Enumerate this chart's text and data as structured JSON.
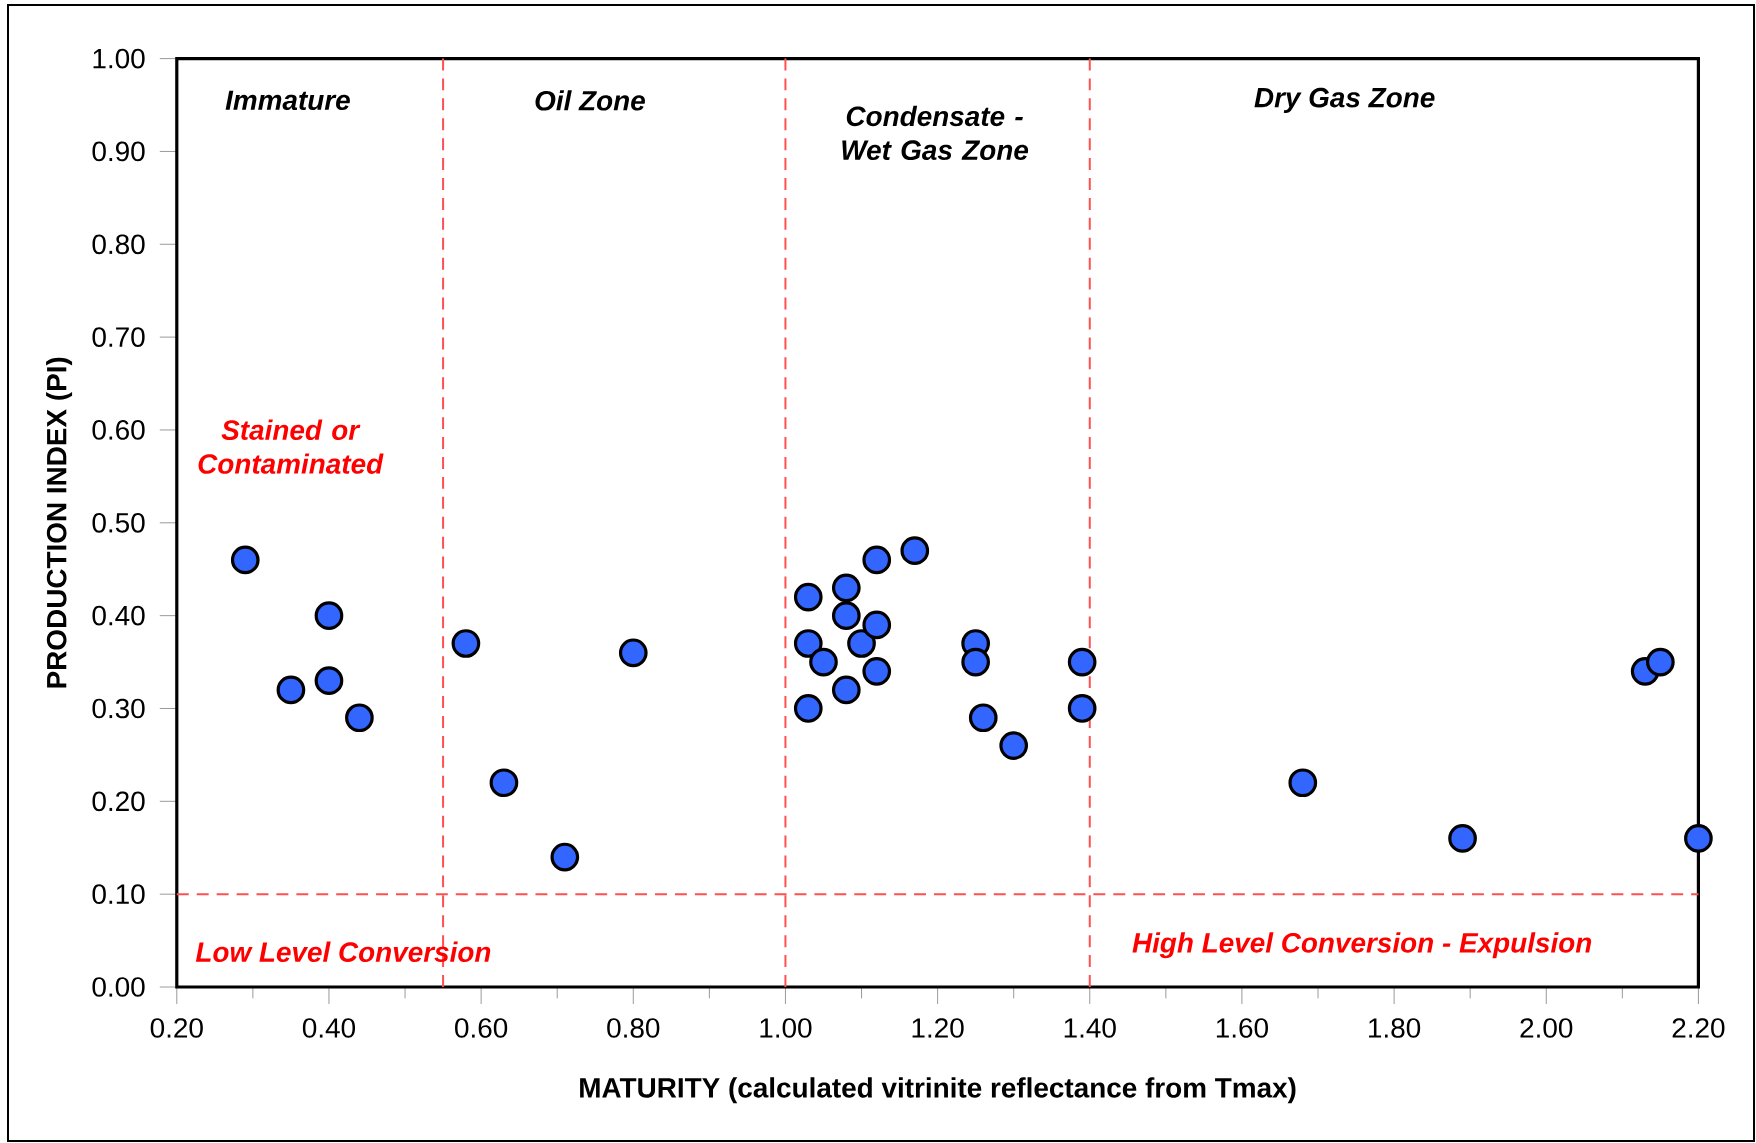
{
  "chart_data": {
    "type": "scatter",
    "xlabel": "MATURITY (calculated vitrinite reflectance from Tmax)",
    "ylabel": "PRODUCTION INDEX (PI)",
    "x": [
      0.29,
      0.35,
      0.4,
      0.4,
      0.44,
      0.58,
      0.63,
      0.71,
      0.8,
      1.03,
      1.03,
      1.03,
      1.05,
      1.08,
      1.08,
      1.08,
      1.1,
      1.12,
      1.12,
      1.12,
      1.17,
      1.25,
      1.25,
      1.26,
      1.3,
      1.39,
      1.39,
      1.68,
      1.89,
      2.13,
      2.15,
      2.2
    ],
    "values": [
      0.46,
      0.32,
      0.4,
      0.33,
      0.29,
      0.37,
      0.22,
      0.14,
      0.36,
      0.42,
      0.37,
      0.3,
      0.35,
      0.43,
      0.4,
      0.32,
      0.37,
      0.46,
      0.39,
      0.34,
      0.47,
      0.37,
      0.35,
      0.29,
      0.26,
      0.35,
      0.3,
      0.22,
      0.16,
      0.34,
      0.35,
      0.16
    ],
    "color": "#3366ff",
    "marker": "circle",
    "xlim": [
      0.2,
      2.2
    ],
    "ylim": [
      0,
      1
    ],
    "xticks": [
      {
        "value": 0.2,
        "label": "0.20"
      },
      {
        "value": 0.4,
        "label": "0.40"
      },
      {
        "value": 0.6,
        "label": "0.60"
      },
      {
        "value": 0.8,
        "label": "0.80"
      },
      {
        "value": 1.0,
        "label": "1.00"
      },
      {
        "value": 1.2,
        "label": "1.20"
      },
      {
        "value": 1.4,
        "label": "1.40"
      },
      {
        "value": 1.6,
        "label": "1.60"
      },
      {
        "value": 1.8,
        "label": "1.80"
      },
      {
        "value": 2.0,
        "label": "2.00"
      },
      {
        "value": 2.2,
        "label": "2.20"
      }
    ],
    "yticks": [
      {
        "value": 0,
        "label": "0.00"
      },
      {
        "value": 0.1,
        "label": "0.10"
      },
      {
        "value": 0.2,
        "label": "0.20"
      },
      {
        "value": 0.3,
        "label": "0.30"
      },
      {
        "value": 0.4,
        "label": "0.40"
      },
      {
        "value": 0.5,
        "label": "0.50"
      },
      {
        "value": 0.6,
        "label": "0.60"
      },
      {
        "value": 0.7,
        "label": "0.70"
      },
      {
        "value": 0.8,
        "label": "0.80"
      },
      {
        "value": 0.9,
        "label": "0.90"
      },
      {
        "value": 1.0,
        "label": "1.00"
      }
    ],
    "ref_lines": [
      {
        "axis": "x",
        "value": 0.55,
        "color": "#ff5050",
        "line_style": "dashed"
      },
      {
        "axis": "x",
        "value": 1.0,
        "color": "#ff5050",
        "line_style": "dashed"
      },
      {
        "axis": "x",
        "value": 1.4,
        "color": "#ff5050",
        "line_style": "dashed"
      },
      {
        "axis": "y",
        "value": 0.1,
        "color": "#ff5050",
        "line_style": "dashed"
      }
    ],
    "annotations": [
      "Immature",
      "Oil Zone",
      "Condensate - Wet Gas Zone",
      "Dry Gas Zone",
      "Stained or Contaminated",
      "Low Level Conversion",
      "High Level Conversion - Expulsion"
    ]
  }
}
